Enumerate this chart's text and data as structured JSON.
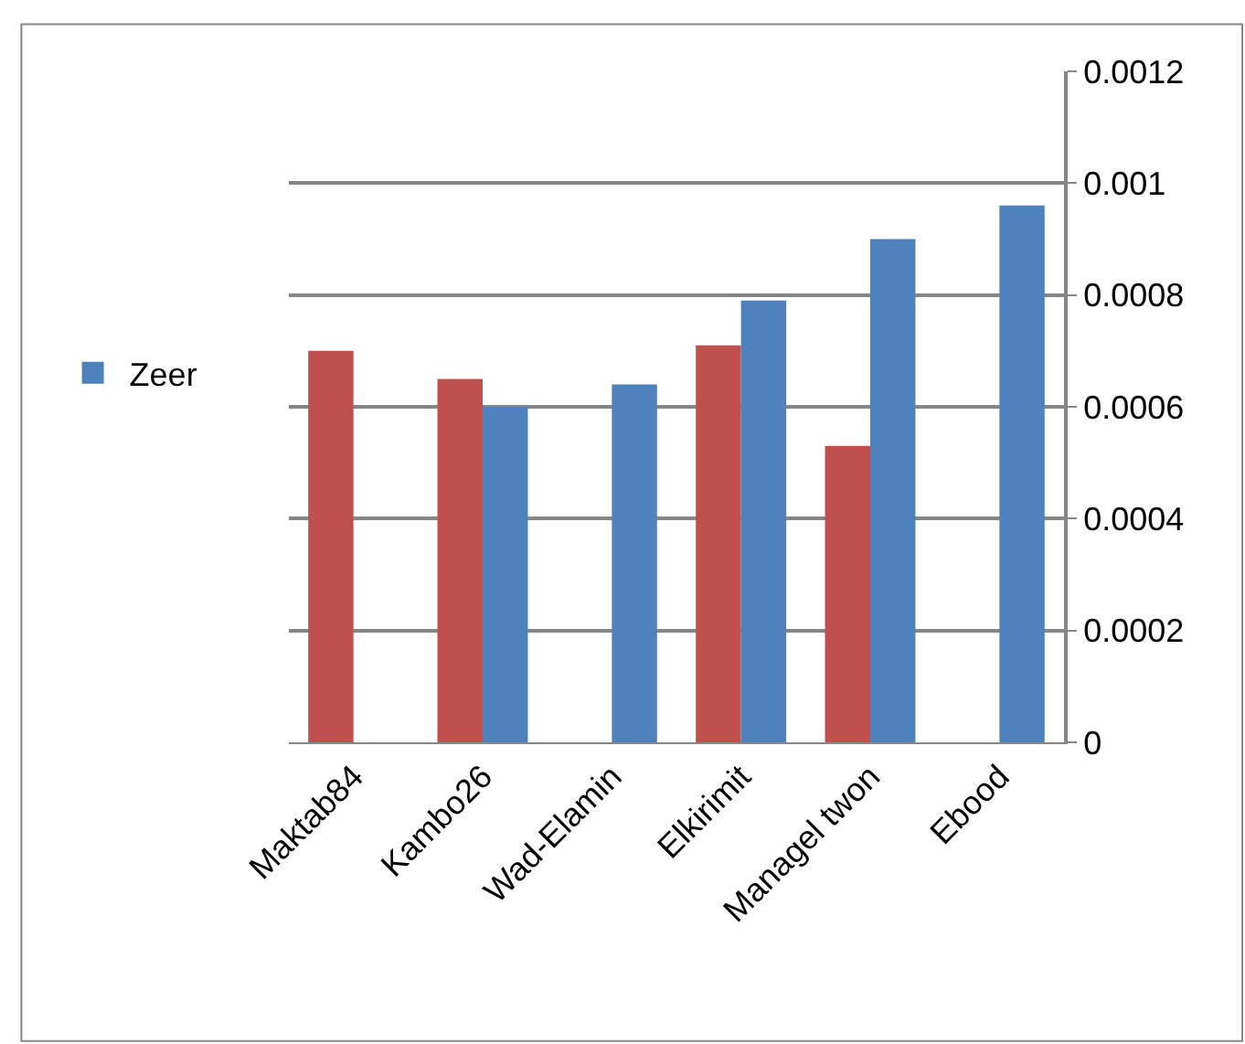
{
  "chart_data": {
    "type": "bar",
    "categories": [
      "Maktab84",
      "Kambo26",
      "Wad-Elamin",
      "Elkirimit",
      "Managel twon",
      "Ebood"
    ],
    "series": [
      {
        "color": "#c0504d",
        "values": [
          0.0007,
          0.00065,
          null,
          0.00071,
          0.00053,
          null
        ]
      },
      {
        "name": "Zeer",
        "color": "#4f81bd",
        "values": [
          null,
          0.0006,
          0.00064,
          0.00079,
          0.0009,
          0.00096
        ]
      }
    ],
    "ylim": [
      0,
      0.0012
    ],
    "yticks": [
      0,
      0.0002,
      0.0004,
      0.0006,
      0.0008,
      0.001,
      0.0012
    ],
    "grid": "y",
    "legend": "left"
  }
}
